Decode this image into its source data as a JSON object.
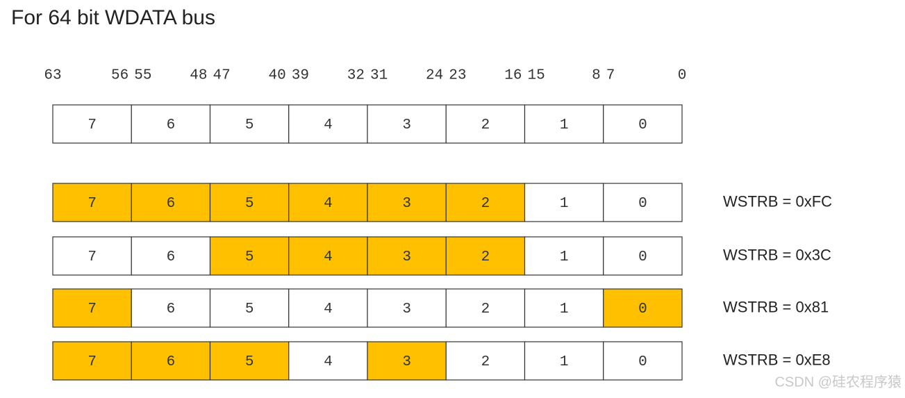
{
  "title": "For 64 bit WDATA bus",
  "bit_labels": [
    {
      "high": "63",
      "low": "56"
    },
    {
      "high": "55",
      "low": "48"
    },
    {
      "high": "47",
      "low": "40"
    },
    {
      "high": "39",
      "low": "32"
    },
    {
      "high": "31",
      "low": "24"
    },
    {
      "high": "23",
      "low": "16"
    },
    {
      "high": "15",
      "low": "8"
    },
    {
      "high": "7",
      "low": "0"
    }
  ],
  "header_row": {
    "cells": [
      "7",
      "6",
      "5",
      "4",
      "3",
      "2",
      "1",
      "0"
    ]
  },
  "rows": [
    {
      "label": "WSTRB = 0xFC",
      "cells": [
        {
          "label": "7",
          "highlighted": true
        },
        {
          "label": "6",
          "highlighted": true
        },
        {
          "label": "5",
          "highlighted": true
        },
        {
          "label": "4",
          "highlighted": true
        },
        {
          "label": "3",
          "highlighted": true
        },
        {
          "label": "2",
          "highlighted": true
        },
        {
          "label": "1",
          "highlighted": false
        },
        {
          "label": "0",
          "highlighted": false
        }
      ]
    },
    {
      "label": "WSTRB = 0x3C",
      "cells": [
        {
          "label": "7",
          "highlighted": false
        },
        {
          "label": "6",
          "highlighted": false
        },
        {
          "label": "5",
          "highlighted": true
        },
        {
          "label": "4",
          "highlighted": true
        },
        {
          "label": "3",
          "highlighted": true
        },
        {
          "label": "2",
          "highlighted": true
        },
        {
          "label": "1",
          "highlighted": false
        },
        {
          "label": "0",
          "highlighted": false
        }
      ]
    },
    {
      "label": "WSTRB = 0x81",
      "cells": [
        {
          "label": "7",
          "highlighted": true
        },
        {
          "label": "6",
          "highlighted": false
        },
        {
          "label": "5",
          "highlighted": false
        },
        {
          "label": "4",
          "highlighted": false
        },
        {
          "label": "3",
          "highlighted": false
        },
        {
          "label": "2",
          "highlighted": false
        },
        {
          "label": "1",
          "highlighted": false
        },
        {
          "label": "0",
          "highlighted": true
        }
      ]
    },
    {
      "label": "WSTRB = 0xE8",
      "cells": [
        {
          "label": "7",
          "highlighted": true
        },
        {
          "label": "6",
          "highlighted": true
        },
        {
          "label": "5",
          "highlighted": true
        },
        {
          "label": "4",
          "highlighted": false
        },
        {
          "label": "3",
          "highlighted": true
        },
        {
          "label": "2",
          "highlighted": false
        },
        {
          "label": "1",
          "highlighted": false
        },
        {
          "label": "0",
          "highlighted": false
        }
      ]
    }
  ],
  "watermark": "CSDN @硅农程序猿"
}
